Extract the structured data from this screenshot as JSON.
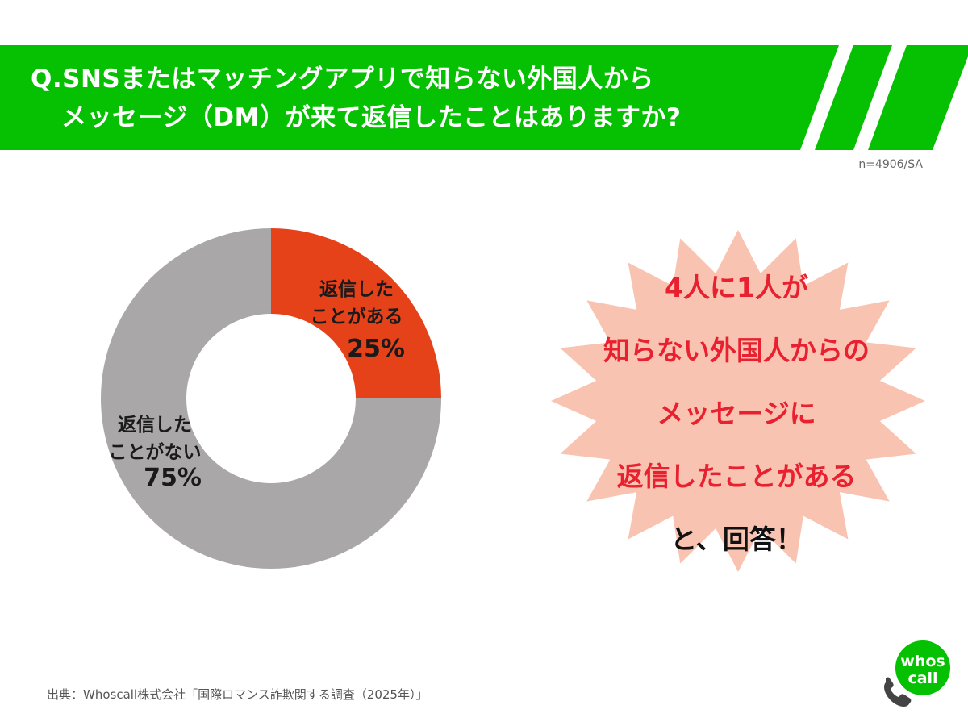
{
  "header": {
    "question_line1": "Q.SNSまたはマッチングアプリで知らない外国人から",
    "question_line2": "メッセージ（DM）が来て返信したことはありますか?",
    "color": "#06c002"
  },
  "sample_note": "n=4906/SA",
  "chart_data": {
    "type": "pie",
    "donut": true,
    "categories": [
      "返信したことがある",
      "返信したことがない"
    ],
    "values": [
      25,
      75
    ],
    "unit": "%",
    "colors": [
      "#e5421a",
      "#a9a7a8"
    ],
    "labels": [
      {
        "lines": [
          "返信した",
          "ことがある"
        ],
        "value_text": "25%"
      },
      {
        "lines": [
          "返信した",
          "ことがない"
        ],
        "value_text": "75%"
      }
    ]
  },
  "callout": {
    "lines": [
      "4人に1人が",
      "知らない外国人からの",
      "メッセージに",
      "返信したことがある",
      "と、回答！"
    ],
    "colors": {
      "highlight": "#e8202f",
      "normal": "#111111",
      "burst_fill": "#f9c3b1"
    }
  },
  "source": "出典：Whoscall株式会社「国際ロマンス詐欺関する調査（2025年）」",
  "logo": {
    "line1": "whos",
    "line2": "call",
    "icon": "phone-icon",
    "color": "#06c002"
  }
}
